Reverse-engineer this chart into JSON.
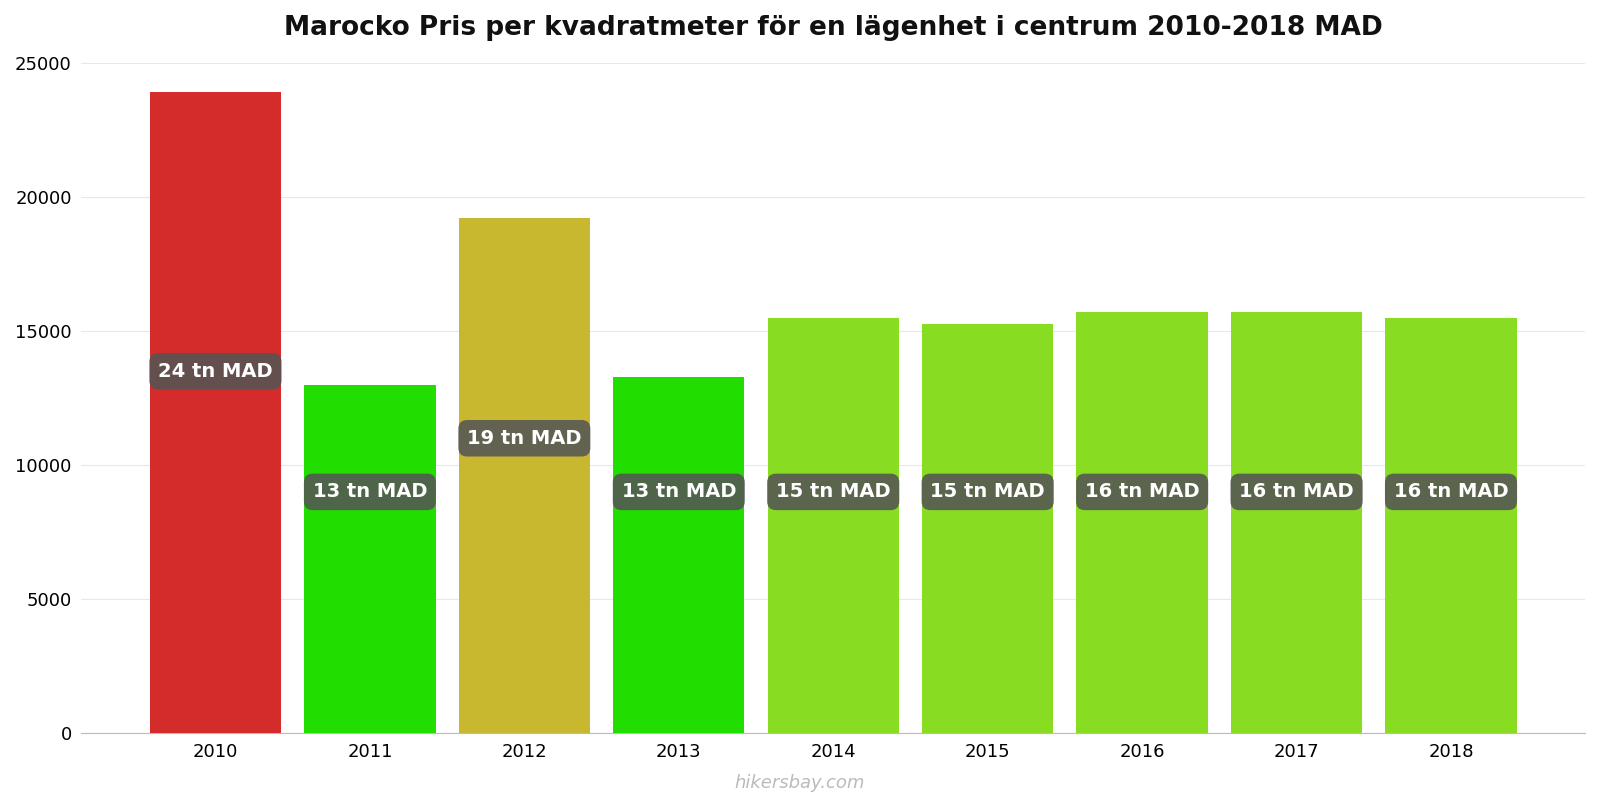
{
  "title": "Marocko Pris per kvadratmeter för en lägenhet i centrum 2010-2018 MAD",
  "years": [
    2010,
    2011,
    2012,
    2013,
    2014,
    2015,
    2016,
    2017,
    2018
  ],
  "values": [
    23900,
    13000,
    19200,
    13300,
    15500,
    15250,
    15700,
    15700,
    15500
  ],
  "labels": [
    "24 tn MAD",
    "13 tn MAD",
    "19 tn MAD",
    "13 tn MAD",
    "15 tn MAD",
    "15 tn MAD",
    "16 tn MAD",
    "16 tn MAD",
    "16 tn MAD"
  ],
  "bar_colors": [
    "#d42b2b",
    "#22dd00",
    "#c8b830",
    "#22dd00",
    "#88dd22",
    "#88dd22",
    "#88dd22",
    "#88dd22",
    "#88dd22"
  ],
  "ylim": [
    0,
    25000
  ],
  "yticks": [
    0,
    5000,
    10000,
    15000,
    20000,
    25000
  ],
  "background_color": "#ffffff",
  "grid_color": "#e8e8e8",
  "watermark": "hikersbay.com",
  "title_fontsize": 19,
  "label_fontsize": 14,
  "tick_fontsize": 13
}
